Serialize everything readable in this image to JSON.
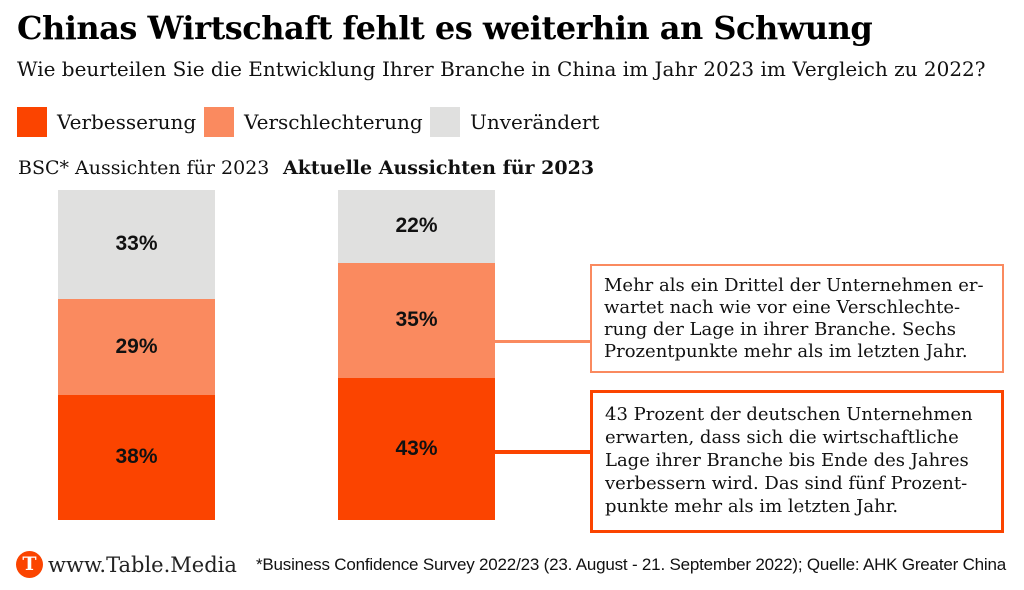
{
  "header": {
    "title": "Chinas Wirtschaft fehlt es weiterhin an Schwung",
    "subtitle": "Wie beurteilen Sie die Entwicklung Ihrer Branche in China im Jahr 2023 im Vergleich zu 2022?"
  },
  "legend": {
    "items": [
      {
        "label": "Verbesserung",
        "color": "#FB4400"
      },
      {
        "label": "Verschlechterung",
        "color": "#FA8A5F"
      },
      {
        "label": "Unverändert",
        "color": "#E0E0DF"
      }
    ]
  },
  "chart_data": {
    "type": "bar",
    "subtype": "stacked-vertical",
    "categories": [
      "BSC* Aussichten für 2023",
      "Aktuelle Aussichten für 2023"
    ],
    "series": [
      {
        "name": "Unverändert",
        "color": "#E0E0DF",
        "values": [
          33,
          22
        ]
      },
      {
        "name": "Verschlechterung",
        "color": "#FA8A5F",
        "values": [
          29,
          35
        ]
      },
      {
        "name": "Verbesserung",
        "color": "#FB4400",
        "values": [
          38,
          43
        ]
      }
    ],
    "stack_order_top_to_bottom": [
      "Unverändert",
      "Verschlechterung",
      "Verbesserung"
    ],
    "value_unit": "%",
    "value_labels_inside": true,
    "total_per_bar": 100,
    "legend_position": "top",
    "grid": false
  },
  "annotations": [
    {
      "border_color": "#FA8A5F",
      "lines": [
        "Mehr als ein Drittel der Unternehmen er-",
        "wartet nach wie vor eine Verschlechte-",
        "rung der Lage in ihrer Branche. Sechs",
        "Prozentpunkte mehr als im letzten Jahr."
      ]
    },
    {
      "border_color": "#FB4400",
      "lines": [
        "43 Prozent der deutschen Unternehmen",
        "erwarten, dass sich die wirtschaftliche",
        "Lage ihrer Branche bis Ende des Jahres",
        "verbessern wird. Das sind fünf Prozent-",
        "punkte mehr als im letzten Jahr."
      ]
    }
  ],
  "footer": {
    "logo_letter": "T",
    "logo_color": "#FB4400",
    "site": "www.Table.Media",
    "source": "*Business Confidence Survey 2022/23 (23. August - 21. September 2022); Quelle: AHK Greater China"
  }
}
